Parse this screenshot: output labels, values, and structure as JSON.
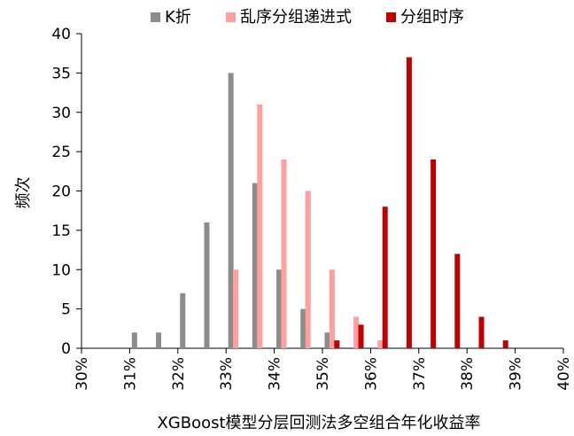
{
  "chart_data": {
    "type": "bar",
    "xlabel": "XGBoost模型分层回测法多空组合年化收益率",
    "ylabel": "频次",
    "ylim": [
      0,
      40
    ],
    "yticks": [
      0,
      5,
      10,
      15,
      20,
      25,
      30,
      35,
      40
    ],
    "categories": [
      "30%",
      "31%",
      "32%",
      "33%",
      "34%",
      "35%",
      "36%",
      "37%",
      "38%",
      "39%",
      "40%"
    ],
    "x_range": [
      30.0,
      40.0
    ],
    "legend_position": "top",
    "grid": false,
    "series": [
      {
        "name": "K折",
        "color": "#8c8c8c",
        "points": [
          {
            "x": 31.1,
            "y": 2
          },
          {
            "x": 31.6,
            "y": 2
          },
          {
            "x": 32.1,
            "y": 7
          },
          {
            "x": 32.6,
            "y": 16
          },
          {
            "x": 33.1,
            "y": 35
          },
          {
            "x": 33.6,
            "y": 21
          },
          {
            "x": 34.1,
            "y": 10
          },
          {
            "x": 34.6,
            "y": 5
          },
          {
            "x": 35.1,
            "y": 2
          }
        ]
      },
      {
        "name": "乱序分组递进式",
        "color": "#ff9f9f",
        "points": [
          {
            "x": 33.2,
            "y": 10
          },
          {
            "x": 33.7,
            "y": 31
          },
          {
            "x": 34.2,
            "y": 24
          },
          {
            "x": 34.7,
            "y": 20
          },
          {
            "x": 35.2,
            "y": 10
          },
          {
            "x": 35.7,
            "y": 4
          },
          {
            "x": 36.2,
            "y": 1
          }
        ]
      },
      {
        "name": "分组时序",
        "color": "#c00000",
        "points": [
          {
            "x": 35.3,
            "y": 1
          },
          {
            "x": 35.8,
            "y": 3
          },
          {
            "x": 36.3,
            "y": 18
          },
          {
            "x": 36.8,
            "y": 37
          },
          {
            "x": 37.3,
            "y": 24
          },
          {
            "x": 37.8,
            "y": 12
          },
          {
            "x": 38.3,
            "y": 4
          },
          {
            "x": 38.8,
            "y": 1
          }
        ]
      }
    ]
  }
}
